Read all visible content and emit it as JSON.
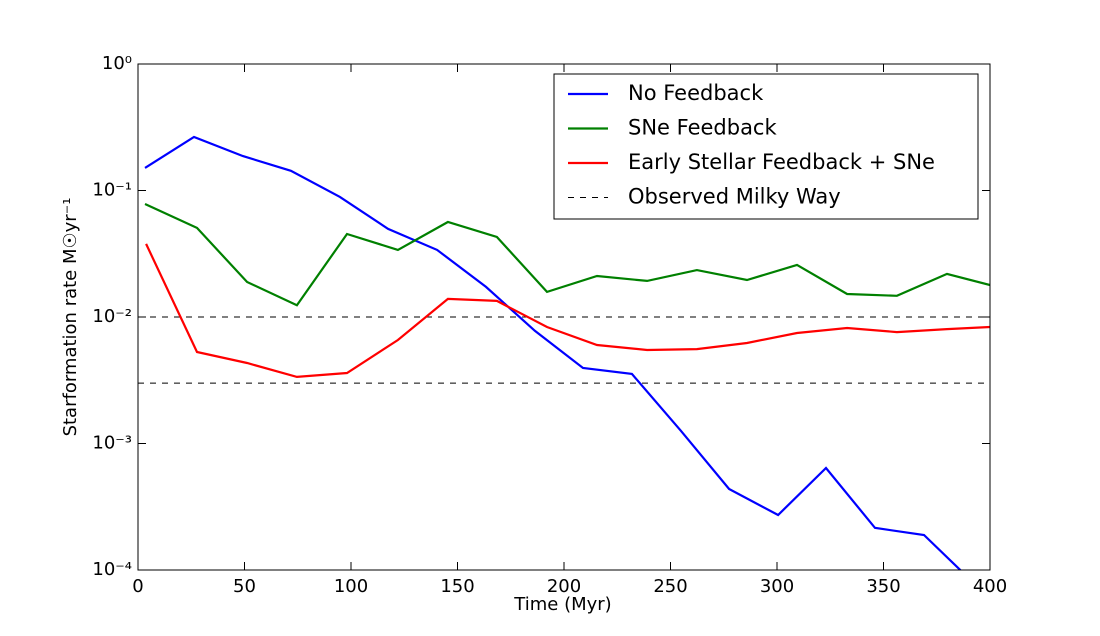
{
  "chart_data": {
    "type": "line",
    "xlabel": "Time (Myr)",
    "ylabel": "Starformation rate M☉yr⁻¹",
    "xlim": [
      0,
      400
    ],
    "xticks": [
      0,
      50,
      100,
      150,
      200,
      250,
      300,
      350,
      400
    ],
    "ylim": [
      0.0001,
      1
    ],
    "log_y": true,
    "yticks": [
      {
        "value": 0.0001,
        "label": "10⁻⁴"
      },
      {
        "value": 0.001,
        "label": "10⁻³"
      },
      {
        "value": 0.01,
        "label": "10⁻²"
      },
      {
        "value": 0.1,
        "label": "10⁻¹"
      },
      {
        "value": 1,
        "label": "10⁰"
      }
    ],
    "legend": "upper right",
    "series": [
      {
        "name": "No Feedback",
        "color": "#0000ff",
        "x": [
          3.3,
          26.3,
          49.3,
          71.8,
          94.8,
          117.4,
          140.4,
          163.4,
          186.4,
          208.9,
          231.9,
          254.9,
          277.5,
          300.5,
          323.0,
          346.0,
          369.0,
          392.0
        ],
        "values": [
          0.151,
          0.265,
          0.187,
          0.143,
          0.089,
          0.0497,
          0.0339,
          0.0173,
          0.00776,
          0.00395,
          0.00355,
          0.00126,
          0.000437,
          0.000272,
          0.00064,
          0.000215,
          0.000189,
          8e-05
        ]
      },
      {
        "name": "SNe Feedback",
        "color": "#008000",
        "x": [
          3.3,
          27.7,
          51.2,
          74.6,
          98.1,
          122.0,
          145.5,
          168.5,
          192.0,
          215.5,
          239.0,
          262.4,
          285.9,
          309.4,
          332.9,
          356.3,
          379.8,
          400.0
        ],
        "values": [
          0.0782,
          0.0506,
          0.0189,
          0.0124,
          0.0453,
          0.0339,
          0.0564,
          0.0429,
          0.0158,
          0.0211,
          0.0193,
          0.0235,
          0.0196,
          0.0258,
          0.0152,
          0.0147,
          0.0219,
          0.0179
        ]
      },
      {
        "name": "Early Stellar Feedback + SNe",
        "color": "#ff0000",
        "x": [
          3.8,
          27.7,
          51.2,
          74.6,
          98.1,
          122.0,
          145.5,
          168.5,
          192.0,
          215.5,
          239.0,
          262.4,
          285.9,
          309.4,
          332.9,
          356.3,
          379.8,
          400.0
        ],
        "values": [
          0.0378,
          0.00529,
          0.00433,
          0.00336,
          0.00361,
          0.00658,
          0.0139,
          0.0134,
          0.00834,
          0.00601,
          0.00548,
          0.00558,
          0.00623,
          0.00748,
          0.00819,
          0.0076,
          0.00803,
          0.00834
        ]
      }
    ],
    "hlines": {
      "name": "Observed Milky Way",
      "color": "#000000",
      "values": [
        0.01,
        0.003
      ]
    }
  }
}
